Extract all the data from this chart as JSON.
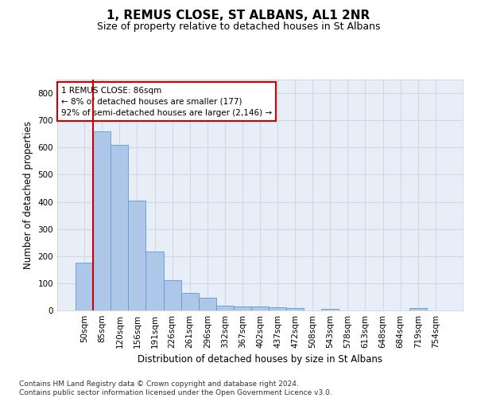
{
  "title": "1, REMUS CLOSE, ST ALBANS, AL1 2NR",
  "subtitle": "Size of property relative to detached houses in St Albans",
  "xlabel": "Distribution of detached houses by size in St Albans",
  "ylabel": "Number of detached properties",
  "bar_labels": [
    "50sqm",
    "85sqm",
    "120sqm",
    "156sqm",
    "191sqm",
    "226sqm",
    "261sqm",
    "296sqm",
    "332sqm",
    "367sqm",
    "402sqm",
    "437sqm",
    "472sqm",
    "508sqm",
    "543sqm",
    "578sqm",
    "613sqm",
    "648sqm",
    "684sqm",
    "719sqm",
    "754sqm"
  ],
  "bar_values": [
    175,
    660,
    610,
    405,
    218,
    110,
    65,
    48,
    18,
    15,
    15,
    12,
    8,
    0,
    7,
    0,
    0,
    0,
    0,
    8,
    0
  ],
  "bar_color": "#aec6e8",
  "bar_edge_color": "#5b9bd5",
  "vline_color": "#cc0000",
  "annotation_text": "1 REMUS CLOSE: 86sqm\n← 8% of detached houses are smaller (177)\n92% of semi-detached houses are larger (2,146) →",
  "annotation_box_color": "#ffffff",
  "annotation_box_edge": "#cc0000",
  "ylim": [
    0,
    850
  ],
  "yticks": [
    0,
    100,
    200,
    300,
    400,
    500,
    600,
    700,
    800
  ],
  "grid_color": "#d0d8e8",
  "bg_color": "#e8eef8",
  "footer": "Contains HM Land Registry data © Crown copyright and database right 2024.\nContains public sector information licensed under the Open Government Licence v3.0.",
  "title_fontsize": 11,
  "subtitle_fontsize": 9,
  "xlabel_fontsize": 8.5,
  "ylabel_fontsize": 8.5,
  "tick_fontsize": 7.5,
  "annotation_fontsize": 7.5,
  "footer_fontsize": 6.5,
  "property_bar_index": 1,
  "vline_bar_index": 1
}
